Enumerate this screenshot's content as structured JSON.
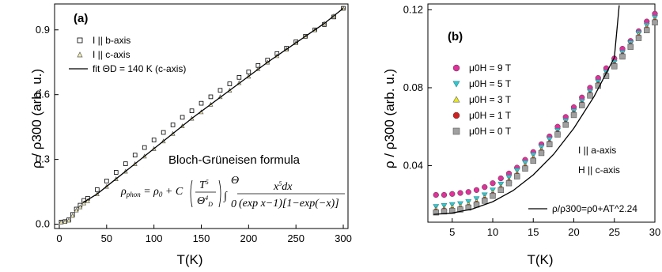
{
  "chart_data": [
    {
      "type": "scatter",
      "panel_label": "(a)",
      "xlabel": "T(K)",
      "ylabel": "ρ / ρ300 (arb. u.)",
      "xlim": [
        -5,
        305
      ],
      "ylim": [
        -0.02,
        1.02
      ],
      "xticks": [
        0,
        50,
        100,
        150,
        200,
        250,
        300
      ],
      "yticks": [
        0.0,
        0.3,
        0.6,
        0.9
      ],
      "ytick_labels": [
        "0.0",
        "0.3",
        "0.6",
        "0.9"
      ],
      "legend_position": "top-left",
      "series": [
        {
          "name": "I || b-axis",
          "marker": "open-square",
          "color": "#000000",
          "x": [
            2,
            6,
            10,
            14,
            18,
            22,
            26,
            30,
            40,
            50,
            60,
            70,
            80,
            90,
            100,
            110,
            120,
            130,
            140,
            150,
            160,
            170,
            180,
            190,
            200,
            210,
            220,
            230,
            240,
            250,
            260,
            270,
            280,
            290,
            300
          ],
          "y": [
            0.01,
            0.012,
            0.02,
            0.045,
            0.07,
            0.088,
            0.11,
            0.12,
            0.16,
            0.2,
            0.24,
            0.28,
            0.32,
            0.355,
            0.39,
            0.425,
            0.46,
            0.495,
            0.525,
            0.56,
            0.59,
            0.62,
            0.65,
            0.68,
            0.705,
            0.735,
            0.76,
            0.79,
            0.815,
            0.845,
            0.87,
            0.9,
            0.925,
            0.96,
            1.0
          ]
        },
        {
          "name": "I || c-axis",
          "marker": "open-triangle",
          "color": "#c8c020",
          "x": [
            2,
            6,
            10,
            14,
            18,
            22,
            26,
            30,
            40,
            50,
            60,
            70,
            80,
            90,
            100,
            110,
            120,
            130,
            140,
            150,
            160,
            170,
            180,
            190,
            200,
            210,
            220,
            230,
            240,
            250,
            260,
            270,
            280,
            290,
            300
          ],
          "y": [
            0.01,
            0.012,
            0.018,
            0.04,
            0.065,
            0.08,
            0.098,
            0.108,
            0.14,
            0.175,
            0.21,
            0.245,
            0.28,
            0.315,
            0.35,
            0.385,
            0.42,
            0.455,
            0.49,
            0.52,
            0.555,
            0.59,
            0.62,
            0.655,
            0.685,
            0.72,
            0.75,
            0.78,
            0.81,
            0.84,
            0.87,
            0.9,
            0.93,
            0.965,
            1.0
          ]
        },
        {
          "name": "fit ΘD = 140 K (c-axis)",
          "style": "line",
          "color": "#000000",
          "x": [
            25,
            40,
            60,
            80,
            100,
            120,
            140,
            160,
            180,
            200,
            220,
            240,
            260,
            280,
            300
          ],
          "y": [
            0.1,
            0.14,
            0.21,
            0.28,
            0.35,
            0.42,
            0.49,
            0.555,
            0.62,
            0.685,
            0.75,
            0.81,
            0.87,
            0.93,
            1.0
          ]
        }
      ],
      "annotations": {
        "formula_title": "Bloch-Grüneisen formula"
      }
    },
    {
      "type": "scatter",
      "panel_label": "(b)",
      "xlabel": "T(K)",
      "ylabel": "ρ / ρ300 (arb. u.)",
      "xlim": [
        2,
        30
      ],
      "ylim": [
        0.011,
        0.123
      ],
      "xticks": [
        5,
        10,
        15,
        20,
        25,
        30
      ],
      "yticks": [
        0.04,
        0.08,
        0.12
      ],
      "legend_position": "top-left",
      "series": [
        {
          "name": "μ0H = 9 T",
          "marker": "circle",
          "color": "#e0309a",
          "x": [
            3,
            4,
            5,
            6,
            7,
            8,
            9,
            10,
            11,
            12,
            13,
            14,
            15,
            16,
            17,
            18,
            19,
            20,
            21,
            22,
            23,
            24,
            25,
            26,
            27,
            28,
            29,
            30
          ],
          "y": [
            0.025,
            0.025,
            0.0255,
            0.026,
            0.0265,
            0.0275,
            0.029,
            0.031,
            0.0335,
            0.036,
            0.039,
            0.043,
            0.047,
            0.051,
            0.055,
            0.06,
            0.065,
            0.07,
            0.075,
            0.08,
            0.085,
            0.09,
            0.095,
            0.1,
            0.104,
            0.109,
            0.114,
            0.118
          ]
        },
        {
          "name": "μ0H = 5 T",
          "marker": "triangle-down",
          "color": "#30c8d0",
          "x": [
            3,
            4,
            5,
            6,
            7,
            8,
            9,
            10,
            11,
            12,
            13,
            14,
            15,
            16,
            17,
            18,
            19,
            20,
            21,
            22,
            23,
            24,
            25,
            26,
            27,
            28,
            29,
            30
          ],
          "y": [
            0.019,
            0.0195,
            0.02,
            0.0205,
            0.0215,
            0.023,
            0.025,
            0.0275,
            0.0305,
            0.034,
            0.0375,
            0.0415,
            0.0455,
            0.0495,
            0.0535,
            0.058,
            0.063,
            0.068,
            0.073,
            0.078,
            0.083,
            0.088,
            0.093,
            0.098,
            0.103,
            0.108,
            0.112,
            0.116
          ]
        },
        {
          "name": "μ0H = 3 T",
          "marker": "triangle-up",
          "color": "#e8e820",
          "x": [
            3,
            4,
            5,
            6,
            7,
            8,
            9,
            10,
            11,
            12,
            13,
            14,
            15,
            16,
            17,
            18,
            19,
            20,
            21,
            22,
            23,
            24,
            25,
            26,
            27,
            28,
            29,
            30
          ],
          "y": [
            0.0175,
            0.018,
            0.0185,
            0.019,
            0.02,
            0.0215,
            0.0235,
            0.026,
            0.029,
            0.0325,
            0.036,
            0.04,
            0.044,
            0.048,
            0.052,
            0.057,
            0.062,
            0.067,
            0.072,
            0.077,
            0.082,
            0.087,
            0.092,
            0.097,
            0.102,
            0.107,
            0.111,
            0.115
          ]
        },
        {
          "name": "μ0H = 1 T",
          "marker": "circle",
          "color": "#d02020",
          "x": [
            3,
            4,
            5,
            6,
            7,
            8,
            9,
            10,
            11,
            12,
            13,
            14,
            15,
            16,
            17,
            18,
            19,
            20,
            21,
            22,
            23,
            24,
            25,
            26,
            27,
            28,
            29,
            30
          ],
          "y": [
            0.0165,
            0.017,
            0.0172,
            0.0178,
            0.0188,
            0.0205,
            0.0225,
            0.025,
            0.028,
            0.0315,
            0.035,
            0.039,
            0.043,
            0.047,
            0.0515,
            0.0565,
            0.0615,
            0.0665,
            0.0715,
            0.0765,
            0.0815,
            0.0865,
            0.0915,
            0.0965,
            0.1015,
            0.106,
            0.11,
            0.114
          ]
        },
        {
          "name": "μ0H = 0 T",
          "marker": "square",
          "color": "#a0a0a0",
          "x": [
            3,
            4,
            5,
            6,
            7,
            8,
            9,
            10,
            11,
            12,
            13,
            14,
            15,
            16,
            17,
            18,
            19,
            20,
            21,
            22,
            23,
            24,
            25,
            26,
            27,
            28,
            29,
            30
          ],
          "y": [
            0.016,
            0.0165,
            0.0168,
            0.0175,
            0.0185,
            0.02,
            0.022,
            0.0245,
            0.0275,
            0.031,
            0.0345,
            0.0385,
            0.0425,
            0.0465,
            0.051,
            0.056,
            0.061,
            0.066,
            0.071,
            0.076,
            0.081,
            0.086,
            0.091,
            0.096,
            0.101,
            0.1055,
            0.1095,
            0.1135
          ]
        },
        {
          "name": "ρ/ρ300=ρ0+AT^2.24",
          "style": "line",
          "color": "#000000",
          "x": [
            2.7,
            5,
            7.5,
            10,
            12.5,
            15,
            17.5,
            20,
            22.5,
            25,
            25.6
          ],
          "y": [
            0.015,
            0.0157,
            0.0178,
            0.0215,
            0.0272,
            0.0353,
            0.0458,
            0.0592,
            0.0755,
            0.0955,
            0.1223
          ]
        }
      ],
      "annotations": {
        "orientation_1": "I || a-axis",
        "orientation_2": "H || c-axis"
      }
    }
  ]
}
